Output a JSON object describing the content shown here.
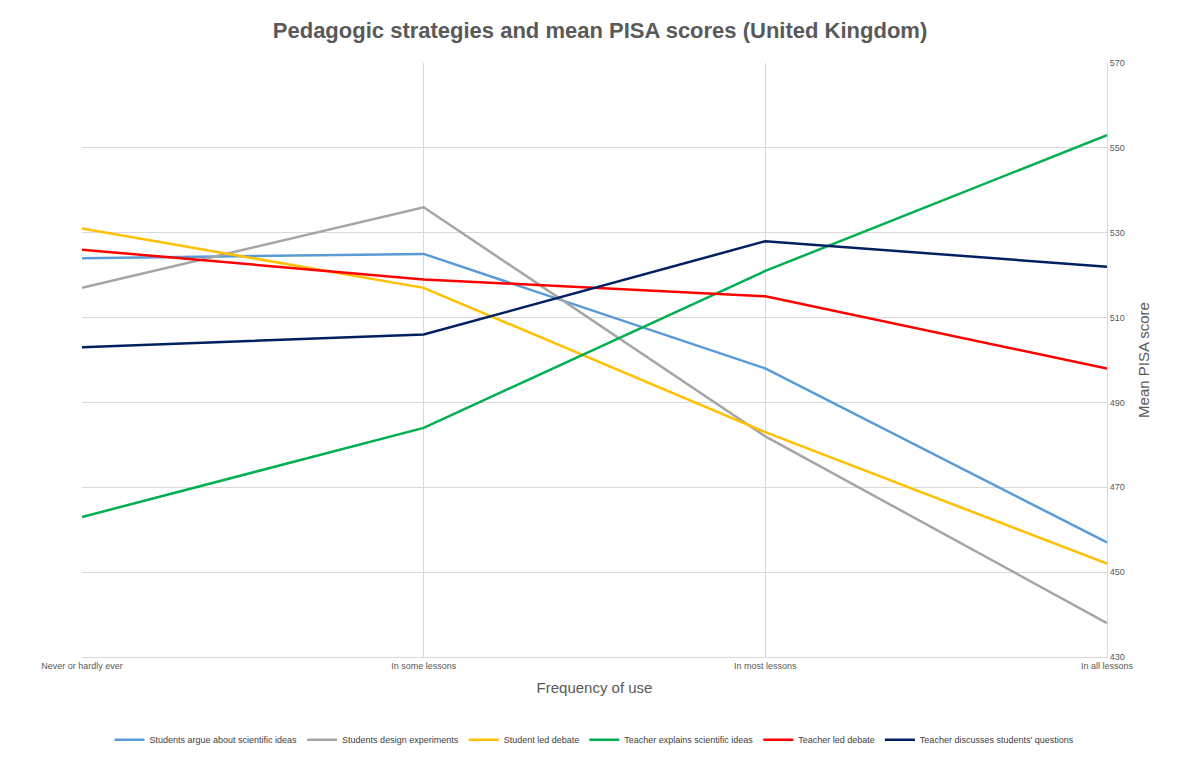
{
  "chart_data": {
    "type": "line",
    "title": "Pedagogic strategies and mean PISA scores (United Kingdom)",
    "x_label": "Frequency of use",
    "y_label": "Mean PISA score",
    "categories": [
      "Never or hardly ever",
      "In some lessons",
      "In most lessons",
      "In all lessons"
    ],
    "series": [
      {
        "name": "Students argue about scientific ideas",
        "color": "#5b9bd5",
        "values": [
          524,
          525,
          498,
          457
        ]
      },
      {
        "name": "Students design experiments",
        "color": "#a5a5a5",
        "values": [
          517,
          536,
          482,
          438
        ]
      },
      {
        "name": "Student led debate",
        "color": "#ffc000",
        "values": [
          531,
          517,
          483,
          452
        ]
      },
      {
        "name": "Teacher explains scientific ideas",
        "color": "#00b050",
        "values": [
          463,
          484,
          521,
          553
        ]
      },
      {
        "name": "Teacher led debate",
        "color": "#ff0000",
        "values": [
          526,
          519,
          515,
          498
        ]
      },
      {
        "name": "Teacher discusses students' questions",
        "color": "#002060",
        "values": [
          503,
          506,
          528,
          522
        ]
      }
    ],
    "ylim": [
      430,
      570
    ],
    "yticks": [
      430,
      450,
      470,
      490,
      510,
      530,
      550,
      570
    ],
    "grid": true,
    "legend": "bottom"
  }
}
